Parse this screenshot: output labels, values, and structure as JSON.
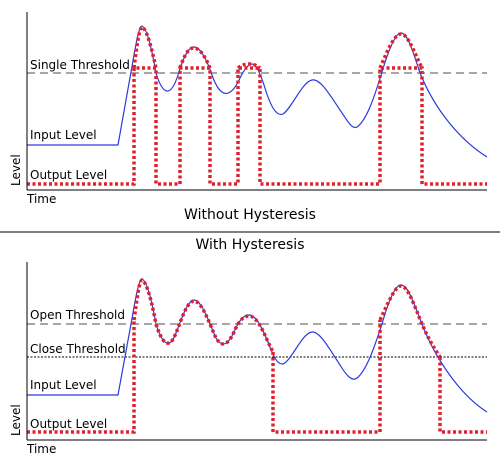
{
  "top_panel": {
    "threshold_label": "Single Threshold",
    "input_label": "Input Level",
    "output_label": "Output Level",
    "y_axis_label": "Level",
    "x_axis_label": "Time",
    "caption": "Without Hysteresis"
  },
  "bottom_panel": {
    "title": "With Hysteresis",
    "open_threshold_label": "Open Threshold",
    "close_threshold_label": "Close Threshold",
    "input_label": "Input Level",
    "output_label": "Output Level",
    "y_axis_label": "Level",
    "x_axis_label": "Time"
  },
  "colors": {
    "input_line": "#2b3ae0",
    "output_line": "#e0202e",
    "threshold_dashed": "#8a8a8a",
    "close_threshold": "#000000",
    "axis": "#000000"
  }
}
